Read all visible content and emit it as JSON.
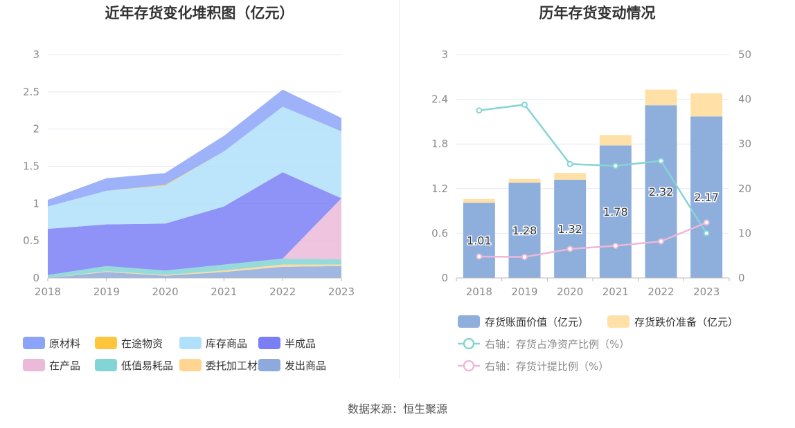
{
  "source_label": "数据来源：恒生聚源",
  "chart_data": [
    {
      "type": "area",
      "stacked": true,
      "title": "近年存货变化堆积图（亿元）",
      "x": [
        "2018",
        "2019",
        "2020",
        "2021",
        "2022",
        "2023"
      ],
      "ylim": [
        0,
        3
      ],
      "yticks": [
        "0",
        "0.5",
        "1",
        "1.5",
        "2",
        "2.5",
        "3"
      ],
      "grid": true,
      "legend_position": "bottom",
      "series": [
        {
          "name": "发出商品",
          "color": "#8eaadc",
          "values": [
            0.0,
            0.08,
            0.03,
            0.08,
            0.15,
            0.16
          ]
        },
        {
          "name": "委托加工材料",
          "color": "#ffd591",
          "values": [
            0.0,
            0.01,
            0.01,
            0.02,
            0.03,
            0.02
          ]
        },
        {
          "name": "低值易耗品",
          "color": "#83d5d5",
          "values": [
            0.04,
            0.07,
            0.06,
            0.08,
            0.08,
            0.07
          ]
        },
        {
          "name": "在产品",
          "color": "#ebbad8",
          "values": [
            0.0,
            0.0,
            0.0,
            0.0,
            0.0,
            0.82
          ]
        },
        {
          "name": "半成品",
          "color": "#7b7ff5",
          "values": [
            0.62,
            0.56,
            0.63,
            0.78,
            1.16,
            0.0
          ]
        },
        {
          "name": "库存商品",
          "color": "#b0e0fa",
          "values": [
            0.3,
            0.45,
            0.51,
            0.74,
            0.88,
            0.9
          ]
        },
        {
          "name": "在途物资",
          "color": "#ffc53d",
          "values": [
            0.0,
            0.0,
            0.01,
            0.0,
            0.0,
            0.0
          ]
        },
        {
          "name": "原材料",
          "color": "#8ca4f8",
          "values": [
            0.09,
            0.17,
            0.16,
            0.21,
            0.23,
            0.18
          ]
        }
      ],
      "legend_order": [
        "原材料",
        "在途物资",
        "库存商品",
        "半成品",
        "在产品",
        "低值易耗品",
        "委托加工材料",
        "发出商品"
      ]
    },
    {
      "type": "bar",
      "stacked": true,
      "title": "历年存货变动情况",
      "categories": [
        "2018",
        "2019",
        "2020",
        "2021",
        "2022",
        "2023"
      ],
      "ylim": [
        0,
        3
      ],
      "yticks": [
        "0",
        "0.6",
        "1.2",
        "1.8",
        "2.4",
        "3"
      ],
      "y2lim": [
        0,
        50
      ],
      "y2ticks": [
        "0",
        "10",
        "20",
        "30",
        "40",
        "50"
      ],
      "grid": true,
      "legend_position": "bottom",
      "series": [
        {
          "name": "存货账面价值（亿元）",
          "type": "bar",
          "color": "#8eaedc",
          "values": [
            1.01,
            1.28,
            1.32,
            1.78,
            2.32,
            2.17
          ],
          "labels": [
            "1.01",
            "1.28",
            "1.32",
            "1.78",
            "2.32",
            "2.17"
          ]
        },
        {
          "name": "存货跌价准备（亿元）",
          "type": "bar",
          "color": "#ffe1a8",
          "values": [
            0.05,
            0.05,
            0.09,
            0.14,
            0.21,
            0.31
          ]
        },
        {
          "name": "右轴：存货占净资产比例（%）",
          "type": "line",
          "axis": "right",
          "color": "#86d4d6",
          "values": [
            37.5,
            38.8,
            25.5,
            25.1,
            26.2,
            10.0
          ]
        },
        {
          "name": "右轴：存货计提比例（%）",
          "type": "line",
          "axis": "right",
          "color": "#ecb8d8",
          "values": [
            4.8,
            4.7,
            6.5,
            7.2,
            8.2,
            12.4
          ]
        }
      ]
    }
  ]
}
